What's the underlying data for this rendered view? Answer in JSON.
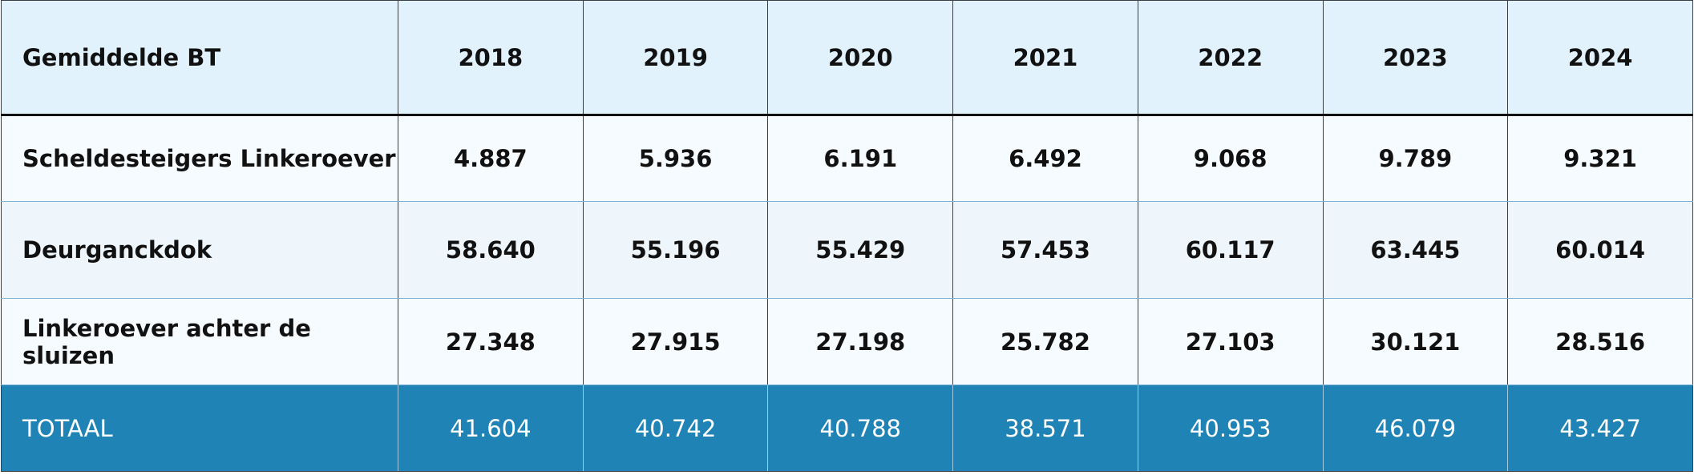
{
  "table": {
    "header": [
      "Gemiddelde BT",
      "2018",
      "2019",
      "2020",
      "2021",
      "2022",
      "2023",
      "2024"
    ],
    "rows": [
      [
        "Scheldesteigers Linkeroever",
        "4.887",
        "5.936",
        "6.191",
        "6.492",
        "9.068",
        "9.789",
        "9.321"
      ],
      [
        "Deurganckdok",
        "58.640",
        "55.196",
        "55.429",
        "57.453",
        "60.117",
        "63.445",
        "60.014"
      ],
      [
        "Linkeroever achter de sluizen",
        "27.348",
        "27.915",
        "27.198",
        "25.782",
        "27.103",
        "30.121",
        "28.516"
      ]
    ],
    "total": [
      "TOTAAL",
      "41.604",
      "40.742",
      "40.788",
      "38.571",
      "40.953",
      "46.079",
      "43.427"
    ]
  }
}
